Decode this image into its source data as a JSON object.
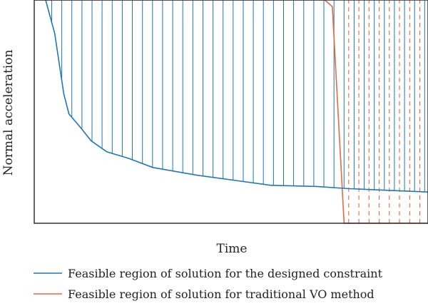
{
  "chart_data": {
    "type": "area",
    "title": "",
    "xlabel": "Time",
    "ylabel": "Normal acceleration",
    "xlim": [
      0,
      1
    ],
    "ylim": [
      0,
      1
    ],
    "ticks_shown": false,
    "grid": false,
    "legend_placement": "bottom",
    "series": [
      {
        "name": "Feasible region of solution for the designed constraint",
        "color": "#1f77b4",
        "boundary": {
          "x": [
            0.029,
            0.052,
            0.075,
            0.088,
            0.117,
            0.144,
            0.184,
            0.241,
            0.301,
            0.414,
            0.518,
            0.601,
            0.717,
            0.799,
            1.0
          ],
          "y": [
            1.0,
            0.85,
            0.58,
            0.49,
            0.43,
            0.37,
            0.32,
            0.29,
            0.25,
            0.215,
            0.19,
            0.17,
            0.165,
            0.155,
            0.14
          ]
        },
        "fill": "vertical-hatch",
        "region": "above boundary"
      },
      {
        "name": "Feasible region of solution for traditional VO method",
        "color": "#e8683f",
        "boundary": {
          "x": [
            0.0,
            0.738,
            0.757,
            0.787,
            1.0
          ],
          "y": [
            1.0,
            1.0,
            0.97,
            0.0,
            0.0
          ]
        },
        "fill": "vertical-dash-hatch",
        "region": "below boundary"
      }
    ]
  }
}
